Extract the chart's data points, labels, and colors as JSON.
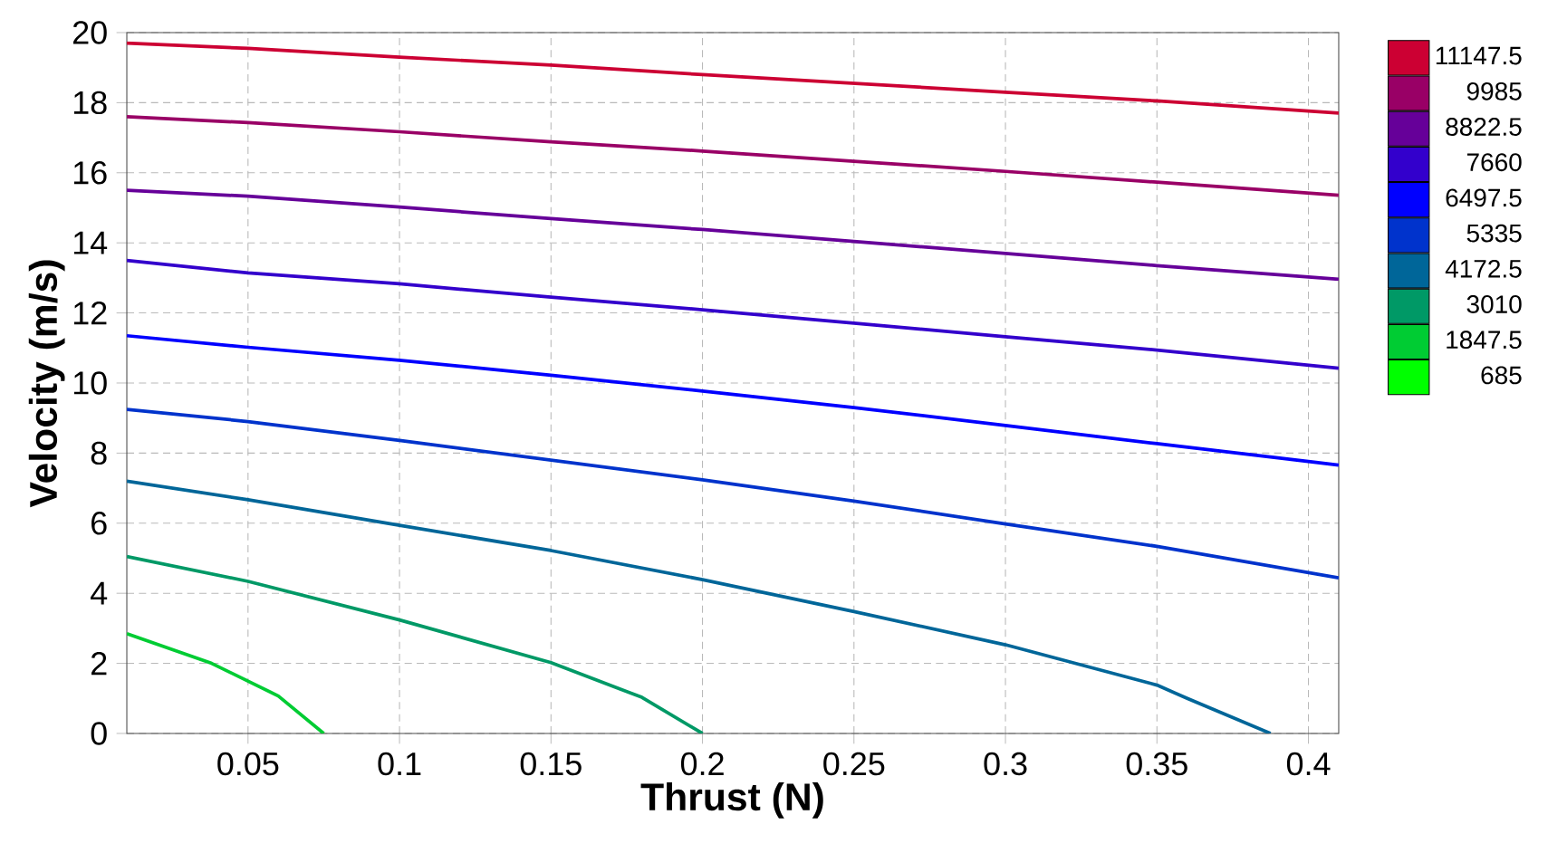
{
  "chart_data": {
    "type": "line",
    "xlabel": "Thrust (N)",
    "ylabel": "Velocity (m/s)",
    "xlim": [
      0.01,
      0.41
    ],
    "ylim": [
      0,
      20
    ],
    "xticks": [
      0.05,
      0.1,
      0.15,
      0.2,
      0.25,
      0.3,
      0.35,
      0.4
    ],
    "yticks": [
      0,
      2,
      4,
      6,
      8,
      10,
      12,
      14,
      16,
      18,
      20
    ],
    "grid": true,
    "legend": "right",
    "series": [
      {
        "name": "11147.5",
        "color": "#cc0033",
        "x": [
          0.01,
          0.05,
          0.1,
          0.15,
          0.2,
          0.25,
          0.3,
          0.35,
          0.41
        ],
        "values": [
          19.7,
          19.55,
          19.3,
          19.07,
          18.8,
          18.55,
          18.3,
          18.05,
          17.7
        ]
      },
      {
        "name": "9985",
        "color": "#990066",
        "x": [
          0.01,
          0.05,
          0.1,
          0.15,
          0.2,
          0.25,
          0.3,
          0.35,
          0.41
        ],
        "values": [
          17.6,
          17.43,
          17.17,
          16.88,
          16.62,
          16.33,
          16.04,
          15.73,
          15.36
        ]
      },
      {
        "name": "8822.5",
        "color": "#660099",
        "x": [
          0.01,
          0.05,
          0.1,
          0.15,
          0.2,
          0.25,
          0.3,
          0.35,
          0.41
        ],
        "values": [
          15.5,
          15.33,
          15.02,
          14.69,
          14.38,
          14.04,
          13.7,
          13.35,
          12.96
        ]
      },
      {
        "name": "7660",
        "color": "#3300cc",
        "x": [
          0.01,
          0.05,
          0.1,
          0.15,
          0.2,
          0.25,
          0.3,
          0.35,
          0.41
        ],
        "values": [
          13.5,
          13.14,
          12.83,
          12.45,
          12.09,
          11.71,
          11.32,
          10.94,
          10.42
        ]
      },
      {
        "name": "6497.5",
        "color": "#0000ff",
        "x": [
          0.01,
          0.05,
          0.1,
          0.15,
          0.2,
          0.25,
          0.3,
          0.35,
          0.41
        ],
        "values": [
          11.35,
          11.02,
          10.65,
          10.22,
          9.77,
          9.3,
          8.79,
          8.27,
          7.66
        ]
      },
      {
        "name": "5335",
        "color": "#0033cc",
        "x": [
          0.01,
          0.05,
          0.1,
          0.15,
          0.2,
          0.25,
          0.3,
          0.35,
          0.41
        ],
        "values": [
          9.25,
          8.9,
          8.36,
          7.8,
          7.24,
          6.63,
          5.98,
          5.34,
          4.44
        ]
      },
      {
        "name": "4172.5",
        "color": "#006699",
        "x": [
          0.01,
          0.05,
          0.1,
          0.15,
          0.2,
          0.25,
          0.3,
          0.35,
          0.36,
          0.3875
        ],
        "values": [
          7.2,
          6.67,
          5.94,
          5.22,
          4.39,
          3.48,
          2.53,
          1.38,
          1.0,
          0
        ]
      },
      {
        "name": "3010",
        "color": "#009966",
        "x": [
          0.01,
          0.05,
          0.1,
          0.15,
          0.18,
          0.2
        ],
        "values": [
          5.05,
          4.34,
          3.24,
          2.02,
          1.03,
          0
        ]
      },
      {
        "name": "1847.5",
        "color": "#00cc33",
        "x": [
          0.01,
          0.038,
          0.06,
          0.075
        ],
        "values": [
          2.85,
          2.0,
          1.07,
          0
        ]
      },
      {
        "name": "685",
        "color": "#00ff00"
      }
    ]
  }
}
